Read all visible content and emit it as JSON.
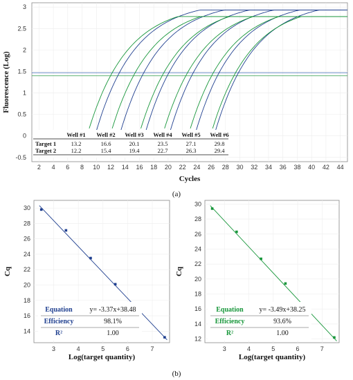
{
  "chart_data": [
    {
      "id": "a",
      "type": "line",
      "caption": "(a)",
      "xlabel": "Cycles",
      "ylabel": "Fluorescence (Log)",
      "xlim": [
        1,
        45
      ],
      "ylim": [
        -0.6,
        3.1
      ],
      "xticks": [
        2,
        4,
        6,
        8,
        10,
        12,
        14,
        16,
        18,
        20,
        22,
        24,
        26,
        28,
        30,
        32,
        34,
        36,
        38,
        40,
        42,
        44
      ],
      "yticks": [
        -0.5,
        0,
        0.5,
        1,
        1.5,
        2,
        2.5,
        3
      ],
      "ytick_labels": [
        "-0.5",
        "0",
        "0.5",
        "1",
        "1.5",
        "2",
        "2.5",
        "3"
      ],
      "grid": true,
      "thresholds": [
        1.47,
        1.4
      ],
      "series": [
        {
          "name": "Target 1",
          "color": "#1f3f8f",
          "cq": [
            13.2,
            16.6,
            20.1,
            23.5,
            27.1,
            29.8
          ],
          "plateau": 2.9
        },
        {
          "name": "Target 2",
          "color": "#17963a",
          "cq": [
            12.2,
            15.4,
            19.4,
            22.7,
            26.3,
            29.4
          ],
          "plateau": 2.78
        }
      ],
      "table": {
        "headers": [
          "Well #1",
          "Well #2",
          "Well #3",
          "Well #4",
          "Well #5",
          "Well #6"
        ],
        "rows": [
          {
            "label": "Target 1",
            "values": [
              "13.2",
              "16.6",
              "20.1",
              "23.5",
              "27.1",
              "29.8"
            ]
          },
          {
            "label": "Target 2",
            "values": [
              "12.2",
              "15.4",
              "19.4",
              "22.7",
              "26.3",
              "29.4"
            ]
          }
        ]
      }
    },
    {
      "id": "b-left",
      "type": "scatter",
      "caption": "(b)",
      "xlabel": "Log(target quantity)",
      "ylabel": "Cq",
      "xlim": [
        2.2,
        7.7
      ],
      "ylim": [
        12.5,
        31
      ],
      "xticks": [
        3,
        4,
        5,
        6,
        7
      ],
      "yticks": [
        14,
        16,
        18,
        20,
        22,
        24,
        26,
        28,
        30
      ],
      "color": "#1f3f8f",
      "x": [
        2.5,
        3.5,
        4.5,
        5.5,
        6.5,
        7.5
      ],
      "y": [
        29.8,
        27.1,
        23.5,
        20.1,
        16.6,
        13.2
      ],
      "fit": {
        "slope": -3.37,
        "intercept": 38.48
      },
      "stats": [
        {
          "label": "Equation",
          "value": "y= -3.37x+38.48"
        },
        {
          "label": "Efficiency",
          "value": "98.1%"
        },
        {
          "label": "R²",
          "value": "1.00"
        }
      ]
    },
    {
      "id": "b-right",
      "type": "scatter",
      "xlabel": "Log(target quantity)",
      "ylabel": "Cq",
      "xlim": [
        2.2,
        7.7
      ],
      "ylim": [
        11.5,
        30.5
      ],
      "xticks": [
        3,
        4,
        5,
        6,
        7
      ],
      "yticks": [
        12,
        14,
        16,
        18,
        20,
        22,
        24,
        26,
        28,
        30
      ],
      "color": "#17963a",
      "x": [
        2.5,
        3.5,
        4.5,
        5.5,
        6.5,
        7.5
      ],
      "y": [
        29.4,
        26.3,
        22.7,
        19.4,
        15.4,
        12.2
      ],
      "fit": {
        "slope": -3.49,
        "intercept": 38.25
      },
      "stats": [
        {
          "label": "Equation",
          "value": "y= -3.49x+38.25"
        },
        {
          "label": "Efficiency",
          "value": "93.6%"
        },
        {
          "label": "R²",
          "value": "1.00"
        }
      ]
    }
  ]
}
